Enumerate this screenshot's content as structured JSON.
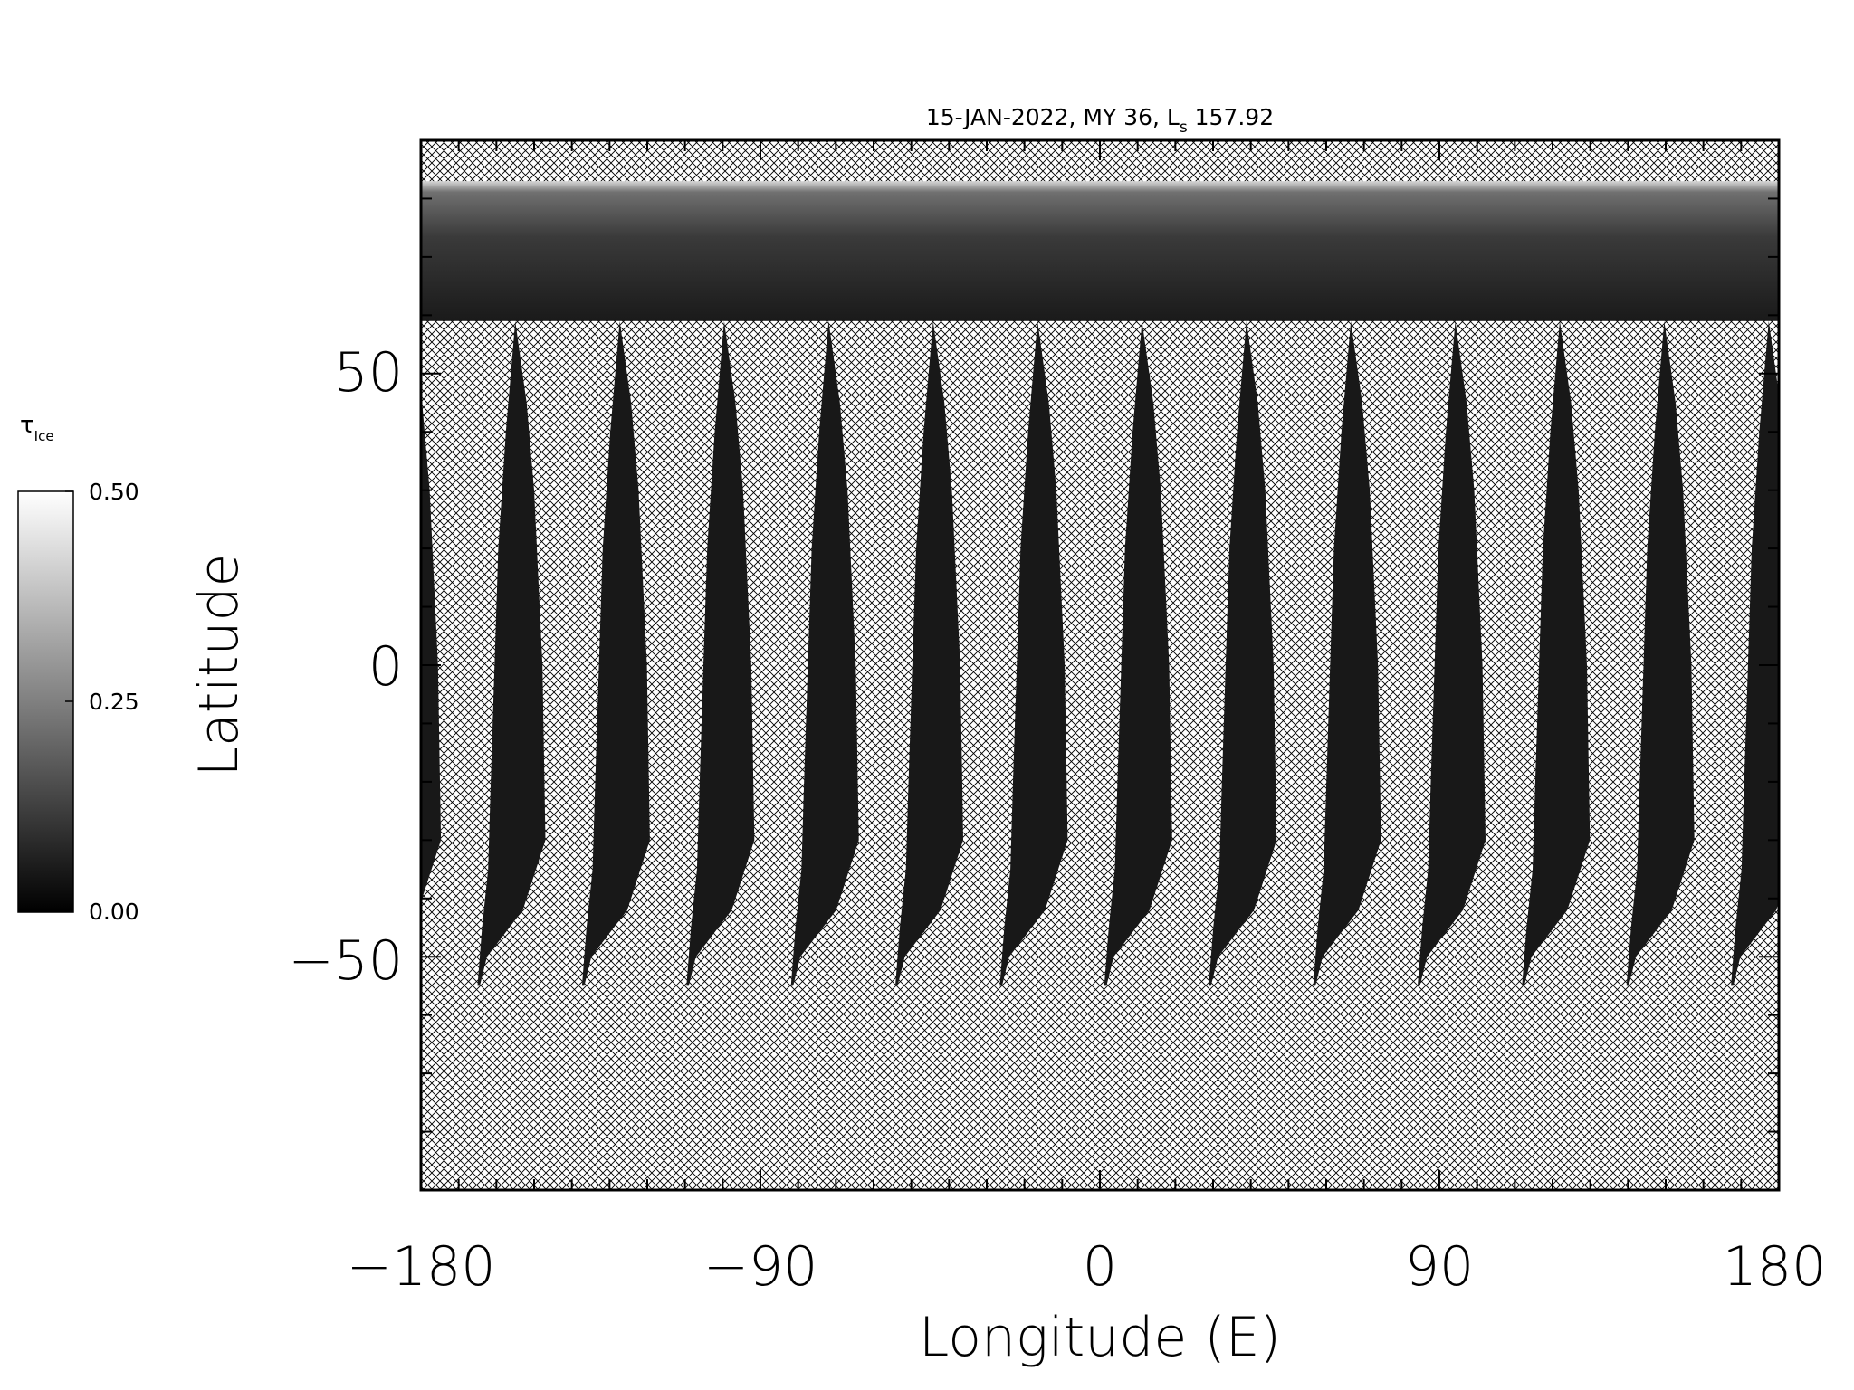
{
  "chart_data": {
    "type": "heatmap",
    "title": {
      "date": "15-JAN-2022",
      "mars_year": "MY 36,",
      "ls_symbol": "L",
      "ls_subscript": "s",
      "ls_value": "157.92"
    },
    "xlabel": "Longitude (E)",
    "ylabel": "Latitude",
    "xlim": [
      -180,
      180
    ],
    "ylim": [
      -90,
      90
    ],
    "xticks": [
      -180,
      -90,
      0,
      90,
      180
    ],
    "xtick_labels": [
      "−180",
      "−90",
      "0",
      "90",
      "180"
    ],
    "yticks": [
      -50,
      0,
      50
    ],
    "ytick_labels": [
      "−50",
      "0",
      "50"
    ],
    "missing_data_pattern": "crosshatch",
    "colormap": "grayscale",
    "colorbar": {
      "symbol": "τ",
      "subscript": "Ice",
      "min": 0.0,
      "max": 0.5,
      "tick_values": [
        0.0,
        0.25,
        0.5
      ],
      "tick_labels": [
        "0.00",
        "0.25",
        "0.50"
      ],
      "color_low": "#000000",
      "color_high": "#ffffff"
    },
    "swath_color": "#181818",
    "polar_cap_color": "#2a2a2a",
    "swath_count": 13,
    "swath_latitude_range": [
      -55,
      59
    ],
    "polar_coverage_lat_min": 59,
    "polar_coverage_lat_max": 83
  }
}
